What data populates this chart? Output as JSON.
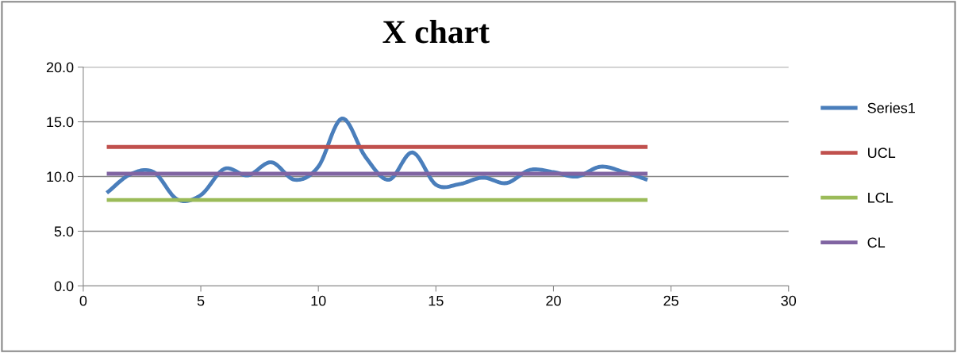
{
  "chart_data": {
    "type": "line",
    "title": "X chart",
    "x": [
      1,
      2,
      3,
      4,
      5,
      6,
      7,
      8,
      9,
      10,
      11,
      12,
      13,
      14,
      15,
      16,
      17,
      18,
      19,
      20,
      21,
      22,
      23,
      24
    ],
    "series": [
      {
        "name": "Series1",
        "color": "#4a7ebb",
        "values": [
          8.5,
          10.2,
          10.4,
          7.9,
          8.3,
          10.7,
          10.1,
          11.3,
          9.7,
          10.9,
          15.3,
          11.8,
          9.7,
          12.2,
          9.25,
          9.3,
          9.9,
          9.4,
          10.6,
          10.4,
          10.0,
          10.9,
          10.4,
          9.7
        ]
      },
      {
        "name": "UCL",
        "color": "#c0504d",
        "values": [
          12.7,
          12.7,
          12.7,
          12.7,
          12.7,
          12.7,
          12.7,
          12.7,
          12.7,
          12.7,
          12.7,
          12.7,
          12.7,
          12.7,
          12.7,
          12.7,
          12.7,
          12.7,
          12.7,
          12.7,
          12.7,
          12.7,
          12.7,
          12.7
        ]
      },
      {
        "name": "LCL",
        "color": "#9bbb59",
        "values": [
          7.85,
          7.85,
          7.85,
          7.85,
          7.85,
          7.85,
          7.85,
          7.85,
          7.85,
          7.85,
          7.85,
          7.85,
          7.85,
          7.85,
          7.85,
          7.85,
          7.85,
          7.85,
          7.85,
          7.85,
          7.85,
          7.85,
          7.85,
          7.85
        ]
      },
      {
        "name": "CL",
        "color": "#8064a2",
        "values": [
          10.25,
          10.25,
          10.25,
          10.25,
          10.25,
          10.25,
          10.25,
          10.25,
          10.25,
          10.25,
          10.25,
          10.25,
          10.25,
          10.25,
          10.25,
          10.25,
          10.25,
          10.25,
          10.25,
          10.25,
          10.25,
          10.25,
          10.25,
          10.25
        ]
      }
    ],
    "xlim": [
      0,
      30
    ],
    "xticks": [
      0,
      5,
      10,
      15,
      20,
      25,
      30
    ],
    "ylim": [
      0,
      20
    ],
    "yticks": [
      {
        "value": 0,
        "label": "0.0"
      },
      {
        "value": 5,
        "label": "5.0"
      },
      {
        "value": 10,
        "label": "10.0"
      },
      {
        "value": 15,
        "label": "15.0"
      },
      {
        "value": 20,
        "label": "20.0"
      }
    ],
    "grid": "y",
    "legend": "right",
    "marker": "none",
    "line_style": "solid"
  }
}
